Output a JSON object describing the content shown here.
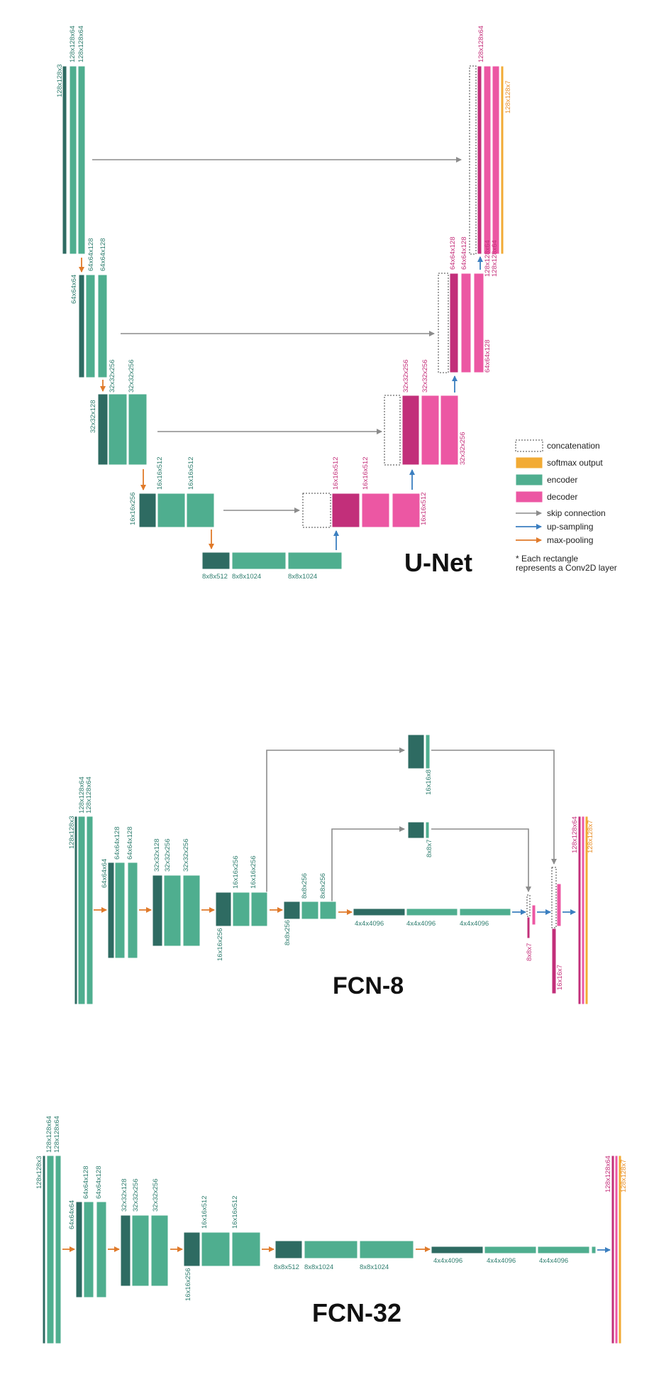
{
  "colors": {
    "encoder_dark": "#2e6b62",
    "encoder": "#4fae8f",
    "decoder_dark": "#c22f7a",
    "decoder": "#ec57a3",
    "softmax": "#f2ab35",
    "skip": "#8c8c8c",
    "upsample": "#3b7fc0",
    "maxpool": "#e07a2a",
    "enc_text": "#2e7d6e",
    "dec_text": "#c42f7a",
    "softmax_text": "#e8902c"
  },
  "legend": {
    "concatenation": "concatenation",
    "softmax": "softmax output",
    "encoder": "encoder",
    "decoder": "decoder",
    "skip": "skip connection",
    "upsampling": "up-sampling",
    "maxpool": "max-pooling",
    "note_line1": "* Each rectangle",
    "note_line2": "represents a Conv2D layer"
  },
  "titles": {
    "unet": "U-Net",
    "fcn8": "FCN-8",
    "fcn32": "FCN-32"
  },
  "unet": {
    "enc1": [
      "128x128x3",
      "128x128x64",
      "128x128x64"
    ],
    "enc2": [
      "64x64x64",
      "64x64x128",
      "64x64x128"
    ],
    "enc3": [
      "32x32x128",
      "32x32x256",
      "32x32x256"
    ],
    "enc4": [
      "16x16x256",
      "16x16x512",
      "16x16x512"
    ],
    "bottleneck": [
      "8x8x512",
      "8x8x1024",
      "8x8x1024"
    ],
    "dec4": [
      "16x16x512",
      "16x16x512",
      "16x16x512"
    ],
    "dec3": [
      "32x32x256",
      "32x32x256",
      "32x32x256"
    ],
    "dec2": [
      "64x64x128",
      "64x64x128",
      "64x64x128"
    ],
    "dec1": [
      "128x128x64",
      "128x128x64",
      "128x128x64"
    ],
    "out": "128x128x7"
  },
  "fcn8": {
    "enc1": [
      "128x128x3",
      "128x128x64",
      "128x128x64"
    ],
    "enc2": [
      "64x64x64",
      "64x64x128",
      "64x64x128"
    ],
    "enc3": [
      "32x32x128",
      "32x32x256",
      "32x32x256"
    ],
    "enc4": [
      "16x16x256",
      "16x16x256",
      "16x16x256"
    ],
    "enc5": [
      "8x8x256",
      "8x8x256",
      "8x8x256"
    ],
    "fc": [
      "4x4x4096",
      "4x4x4096",
      "4x4x4096"
    ],
    "p16": "16x16x8",
    "p8": "8x8x7",
    "up1": "8x8x7",
    "up2": "16x16x7",
    "dec": "128x128x64",
    "out": "128x128x7"
  },
  "fcn32": {
    "enc1": [
      "128x128x3",
      "128x128x64",
      "128x128x64"
    ],
    "enc2": [
      "64x64x64",
      "64x64x128",
      "64x64x128"
    ],
    "enc3": [
      "32x32x128",
      "32x32x256",
      "32x32x256"
    ],
    "enc4": [
      "16x16x256",
      "16x16x512",
      "16x16x512"
    ],
    "enc5": [
      "8x8x512",
      "8x8x1024",
      "8x8x1024"
    ],
    "fc": [
      "4x4x4096",
      "4x4x4096",
      "4x4x4096"
    ],
    "dec": "128x128x64",
    "out": "128x128x7"
  }
}
